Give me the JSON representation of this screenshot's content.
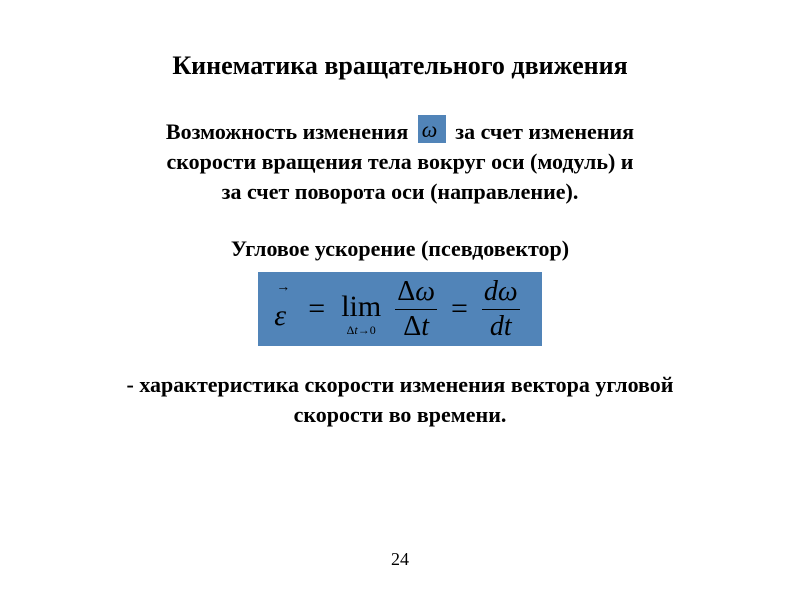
{
  "title": "Кинематика вращательного движения",
  "para1": {
    "line1_before": "Возможность изменения",
    "omega_glyph": "ω",
    "line1_after": " за счет изменения",
    "line2": "скорости вращения тела вокруг оси (модуль) и",
    "line3": "за счет поворота оси (направление)."
  },
  "subhead": "Угловое ускорение (псевдовектор)",
  "formula": {
    "eps_arrow": "→",
    "eps": "ε",
    "eq": "=",
    "lim_label": "lim",
    "lim_sub_delta": "Δ",
    "lim_sub_t": "t",
    "lim_sub_arrow": "→",
    "lim_sub_zero": "0",
    "frac1_top_delta": "Δ",
    "frac1_top_omega": "ω",
    "frac1_bot_delta": "Δ",
    "frac1_bot_t": "t",
    "eq2": "=",
    "frac2_top_d": "d",
    "frac2_top_omega": "ω",
    "frac2_bot_d": "d",
    "frac2_bot_t": "t"
  },
  "footer": {
    "line1": "- характеристика скорости изменения вектора угловой",
    "line2": "скорости во времени."
  },
  "page_number": "24",
  "colors": {
    "box_bg": "#5184b8",
    "text": "#000000",
    "page_bg": "#ffffff"
  }
}
